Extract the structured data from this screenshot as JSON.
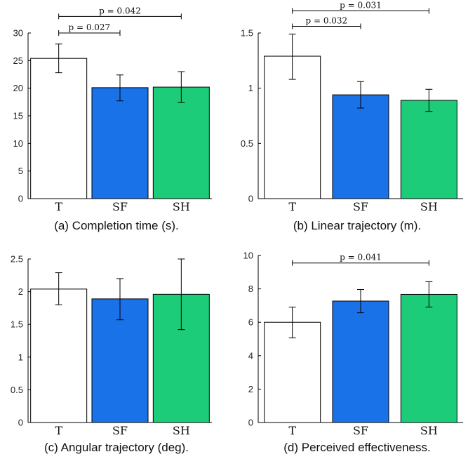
{
  "colors": {
    "T": "#ffffff",
    "SF": "#1a72e8",
    "SH": "#1ccc78",
    "stroke": "#000000"
  },
  "chart_data": [
    {
      "type": "bar",
      "caption": "(a) Completion time (s).",
      "categories": [
        "T",
        "SF",
        "SH"
      ],
      "values": [
        25.4,
        20.1,
        20.2
      ],
      "errors": [
        [
          22.8,
          28.0
        ],
        [
          17.7,
          22.4
        ],
        [
          17.4,
          23.0
        ]
      ],
      "ylim": [
        0,
        30
      ],
      "yticks": [
        0,
        5,
        10,
        15,
        20,
        25,
        30
      ],
      "ytick_labels": [
        "0",
        "5",
        "10",
        "15",
        "20",
        "25",
        "30"
      ],
      "significance": [
        {
          "from": 0,
          "to": 1,
          "label": "p = 0.027",
          "level": 30.0
        },
        {
          "from": 0,
          "to": 2,
          "label": "p = 0.042",
          "level": 33.0
        }
      ]
    },
    {
      "type": "bar",
      "caption": "(b) Linear trajectory (m).",
      "categories": [
        "T",
        "SF",
        "SH"
      ],
      "values": [
        1.29,
        0.94,
        0.89
      ],
      "errors": [
        [
          1.08,
          1.49
        ],
        [
          0.82,
          1.06
        ],
        [
          0.79,
          0.99
        ]
      ],
      "ylim": [
        0,
        1.5
      ],
      "yticks": [
        0,
        0.5,
        1,
        1.5
      ],
      "ytick_labels": [
        "0",
        "0.5",
        "1",
        "1.5"
      ],
      "significance": [
        {
          "from": 0,
          "to": 1,
          "label": "p = 0.032",
          "level": 1.56
        },
        {
          "from": 0,
          "to": 2,
          "label": "p = 0.031",
          "level": 1.7
        }
      ]
    },
    {
      "type": "bar",
      "caption": "(c) Angular trajectory (deg).",
      "categories": [
        "T",
        "SF",
        "SH"
      ],
      "values": [
        2.04,
        1.89,
        1.96
      ],
      "errors": [
        [
          1.8,
          2.29
        ],
        [
          1.57,
          2.2
        ],
        [
          1.42,
          2.5
        ]
      ],
      "ylim": [
        0,
        2.5
      ],
      "yticks": [
        0,
        0.5,
        1,
        1.5,
        2,
        2.5
      ],
      "ytick_labels": [
        "0",
        "0.5",
        "1",
        "1.5",
        "2",
        "2.5"
      ],
      "significance": []
    },
    {
      "type": "bar",
      "caption": "(d) Perceived effectiveness.",
      "categories": [
        "T",
        "SF",
        "SH"
      ],
      "values": [
        6.0,
        7.27,
        7.67
      ],
      "errors": [
        [
          5.07,
          6.91
        ],
        [
          6.57,
          7.96
        ],
        [
          6.91,
          8.43
        ]
      ],
      "ylim": [
        0,
        10
      ],
      "yticks": [
        0,
        2,
        4,
        6,
        8,
        10
      ],
      "ytick_labels": [
        "0",
        "2",
        "4",
        "6",
        "8",
        "10"
      ],
      "significance": [
        {
          "from": 0,
          "to": 2,
          "label": "p = 0.041",
          "level": 9.55
        }
      ]
    }
  ]
}
